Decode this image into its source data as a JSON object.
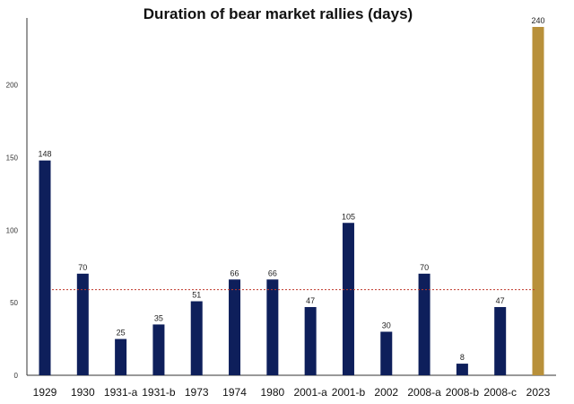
{
  "chart_data": {
    "type": "bar",
    "title": "Duration of bear market rallies (days)",
    "xlabel": "",
    "ylabel": "",
    "ylim": [
      0,
      240
    ],
    "yticks": [
      0,
      50,
      100,
      150,
      200
    ],
    "categories": [
      "1929",
      "1930",
      "1931-a",
      "1931-b",
      "1973",
      "1974",
      "1980",
      "2001-a",
      "2001-b",
      "2002",
      "2008-a",
      "2008-b",
      "2008-c",
      "2023"
    ],
    "values": [
      148,
      70,
      25,
      35,
      51,
      66,
      66,
      47,
      105,
      30,
      70,
      8,
      47,
      240
    ],
    "data_labels": [
      "148",
      "70",
      "25",
      "35",
      "51",
      "66",
      "66",
      "47",
      "105",
      "30",
      "70",
      "8",
      "47",
      "240"
    ],
    "reference_line": {
      "value": 59,
      "style": "dashed"
    },
    "colors": {
      "bar": "#0e1f5b",
      "highlight": "#b8903a",
      "reference": "#c0392b",
      "axis": "#333333"
    },
    "highlight_index": 13,
    "grid": false
  }
}
